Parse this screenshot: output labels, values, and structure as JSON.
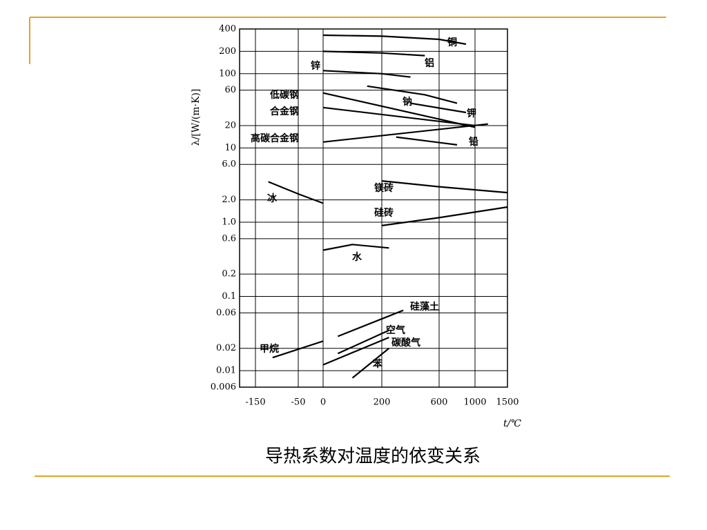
{
  "chart_data": {
    "type": "line",
    "caption": "导热系数对温度的依变关系",
    "y_label": "λ/[W/(m·K)]",
    "x_label": "t/℃",
    "ylog": true,
    "grid": true,
    "color": "#000000",
    "xlim": [
      -150,
      1500
    ],
    "xticks": [
      -150,
      -50,
      0,
      200,
      600,
      1000,
      1500
    ],
    "ylim": [
      0.006,
      400
    ],
    "yticks": [
      400,
      200,
      100,
      60,
      20,
      10,
      {
        "value": 6,
        "label": "6.0"
      },
      {
        "value": 2,
        "label": "2.0"
      },
      {
        "value": 1,
        "label": "1.0"
      },
      0.6,
      0.2,
      0.1,
      0.06,
      0.02,
      0.01,
      0.006
    ],
    "series": [
      {
        "name": "铜",
        "x": [
          0,
          200,
          600,
          900
        ],
        "values": [
          330,
          320,
          290,
          250
        ]
      },
      {
        "name": "铝",
        "x": [
          0,
          200,
          500
        ],
        "values": [
          200,
          190,
          175
        ]
      },
      {
        "name": "锌",
        "x": [
          0,
          200,
          400
        ],
        "values": [
          110,
          100,
          90
        ]
      },
      {
        "name": "钠",
        "x": [
          150,
          500,
          800
        ],
        "values": [
          68,
          52,
          40
        ]
      },
      {
        "name": "钾",
        "x": [
          400,
          900
        ],
        "values": [
          40,
          30
        ]
      },
      {
        "name": "铅",
        "x": [
          300,
          800
        ],
        "values": [
          14,
          11
        ]
      },
      {
        "name": "低碳钢",
        "x": [
          0,
          1000
        ],
        "values": [
          55,
          19
        ]
      },
      {
        "name": "合金钢",
        "x": [
          0,
          1000
        ],
        "values": [
          35,
          20
        ]
      },
      {
        "name": "高碳合金钢",
        "x": [
          0,
          1200
        ],
        "values": [
          12,
          21
        ]
      },
      {
        "name": "镁砖",
        "x": [
          200,
          600,
          1500
        ],
        "values": [
          3.6,
          3,
          2.5
        ]
      },
      {
        "name": "硅砖",
        "x": [
          200,
          600,
          1500
        ],
        "values": [
          0.9,
          1.15,
          1.6
        ]
      },
      {
        "name": "冰",
        "x": [
          -120,
          -50,
          0
        ],
        "values": [
          3.5,
          2.4,
          1.8
        ]
      },
      {
        "name": "水",
        "x": [
          0,
          100,
          250
        ],
        "values": [
          0.42,
          0.5,
          0.45
        ]
      },
      {
        "name": "硅藻土",
        "x": [
          50,
          350
        ],
        "values": [
          0.029,
          0.065
        ]
      },
      {
        "name": "空气",
        "x": [
          50,
          250
        ],
        "values": [
          0.017,
          0.035
        ]
      },
      {
        "name": "碳酸气",
        "x": [
          0,
          250
        ],
        "values": [
          0.012,
          0.028
        ]
      },
      {
        "name": "甲烷",
        "x": [
          -110,
          0
        ],
        "values": [
          0.015,
          0.025
        ]
      },
      {
        "name": "苯",
        "x": [
          100,
          250
        ],
        "values": [
          0.008,
          0.02
        ]
      }
    ]
  }
}
